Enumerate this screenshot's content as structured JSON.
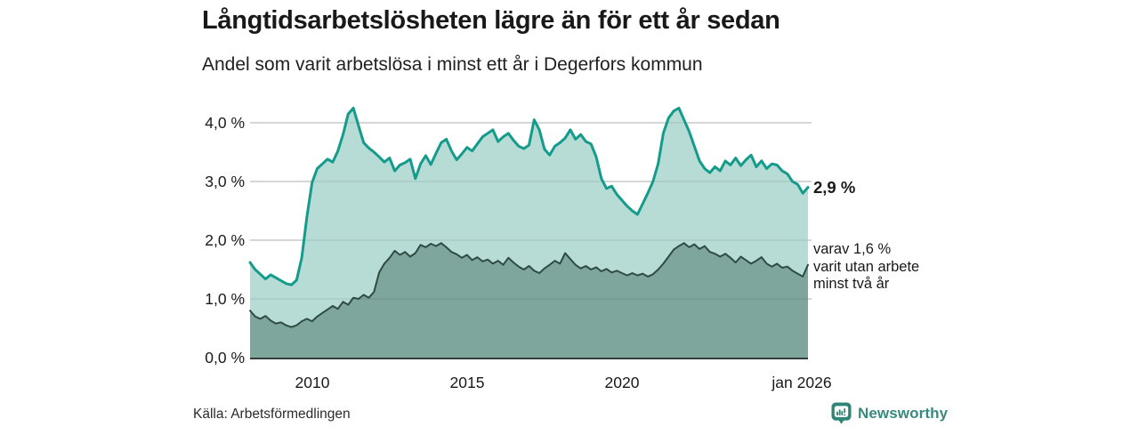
{
  "header": {
    "title": "Långtidsarbetslösheten lägre än för ett år sedan",
    "subtitle": "Andel som varit arbetslösa i minst ett år i Degerfors kommun"
  },
  "chart_data": {
    "type": "area",
    "title": "Långtidsarbetslösheten lägre än för ett år sedan",
    "subtitle": "Andel som varit arbetslösa i minst ett år i Degerfors kommun",
    "unit": "%",
    "x_start": 2008.0,
    "x_end": 2026.0,
    "x_step_years": 0.1667,
    "x_note": "monthly-style series sampled every 2 months, jan 2008 to jan 2026",
    "ylim": [
      0,
      4.35
    ],
    "grid": true,
    "series": [
      {
        "name": "Andel som varit arbetslösa minst ett år",
        "line_color": "#149b8b",
        "fill_color": "#b7dcd5",
        "last_value": 2.9,
        "values": [
          1.62,
          1.5,
          1.42,
          1.34,
          1.41,
          1.36,
          1.31,
          1.26,
          1.24,
          1.32,
          1.7,
          2.4,
          2.98,
          3.22,
          3.3,
          3.38,
          3.33,
          3.52,
          3.8,
          4.15,
          4.25,
          3.95,
          3.66,
          3.57,
          3.5,
          3.42,
          3.33,
          3.4,
          3.18,
          3.28,
          3.32,
          3.38,
          3.05,
          3.3,
          3.44,
          3.29,
          3.48,
          3.66,
          3.72,
          3.52,
          3.37,
          3.47,
          3.58,
          3.52,
          3.64,
          3.76,
          3.82,
          3.88,
          3.68,
          3.76,
          3.82,
          3.7,
          3.6,
          3.56,
          3.62,
          4.05,
          3.88,
          3.55,
          3.45,
          3.6,
          3.66,
          3.74,
          3.88,
          3.72,
          3.8,
          3.68,
          3.64,
          3.42,
          3.05,
          2.88,
          2.92,
          2.78,
          2.68,
          2.58,
          2.5,
          2.44,
          2.62,
          2.8,
          3.0,
          3.3,
          3.82,
          4.08,
          4.2,
          4.25,
          4.05,
          3.85,
          3.6,
          3.35,
          3.22,
          3.15,
          3.25,
          3.18,
          3.35,
          3.28,
          3.4,
          3.27,
          3.37,
          3.45,
          3.25,
          3.35,
          3.22,
          3.3,
          3.28,
          3.18,
          3.13,
          3.0,
          2.95,
          2.8,
          2.9
        ]
      },
      {
        "name": "varav utan arbete minst två år",
        "line_color": "#2e4b45",
        "fill_color": "#7ea69c",
        "last_value": 1.6,
        "values": [
          0.8,
          0.7,
          0.66,
          0.71,
          0.63,
          0.58,
          0.6,
          0.55,
          0.52,
          0.55,
          0.62,
          0.66,
          0.62,
          0.7,
          0.76,
          0.82,
          0.88,
          0.83,
          0.95,
          0.9,
          1.02,
          1.0,
          1.07,
          1.02,
          1.12,
          1.45,
          1.6,
          1.7,
          1.82,
          1.75,
          1.8,
          1.72,
          1.78,
          1.92,
          1.88,
          1.94,
          1.9,
          1.95,
          1.88,
          1.8,
          1.76,
          1.7,
          1.75,
          1.66,
          1.71,
          1.64,
          1.67,
          1.6,
          1.65,
          1.58,
          1.7,
          1.62,
          1.55,
          1.5,
          1.56,
          1.48,
          1.44,
          1.52,
          1.58,
          1.65,
          1.6,
          1.78,
          1.68,
          1.58,
          1.52,
          1.56,
          1.5,
          1.54,
          1.47,
          1.51,
          1.45,
          1.48,
          1.44,
          1.4,
          1.44,
          1.4,
          1.43,
          1.38,
          1.42,
          1.5,
          1.6,
          1.72,
          1.84,
          1.9,
          1.95,
          1.88,
          1.93,
          1.85,
          1.9,
          1.8,
          1.77,
          1.72,
          1.77,
          1.7,
          1.62,
          1.72,
          1.66,
          1.6,
          1.65,
          1.71,
          1.6,
          1.55,
          1.6,
          1.53,
          1.55,
          1.48,
          1.43,
          1.38,
          1.58
        ]
      }
    ],
    "y_ticks": [
      {
        "value": 0,
        "label": "0,0 %"
      },
      {
        "value": 1,
        "label": "1,0 %"
      },
      {
        "value": 2,
        "label": "2,0 %"
      },
      {
        "value": 3,
        "label": "3,0 %"
      },
      {
        "value": 4,
        "label": "4,0 %"
      }
    ],
    "x_ticks": [
      {
        "value": 2010,
        "label": "2010"
      },
      {
        "value": 2015,
        "label": "2015"
      },
      {
        "value": 2020,
        "label": "2020"
      },
      {
        "value": 2026,
        "label": "jan 2026"
      }
    ],
    "colors": {
      "gridline": "#d9d9d9",
      "baseline": "#333d3a",
      "brand_teal": "#2e8577"
    }
  },
  "annotations": {
    "latest_total": "2,9 %",
    "sub_line1": "varav 1,6 %",
    "sub_line2": "varit utan arbete",
    "sub_line3": "minst två år"
  },
  "footer": {
    "source": "Källa: Arbetsförmedlingen",
    "brand": "Newsworthy"
  }
}
